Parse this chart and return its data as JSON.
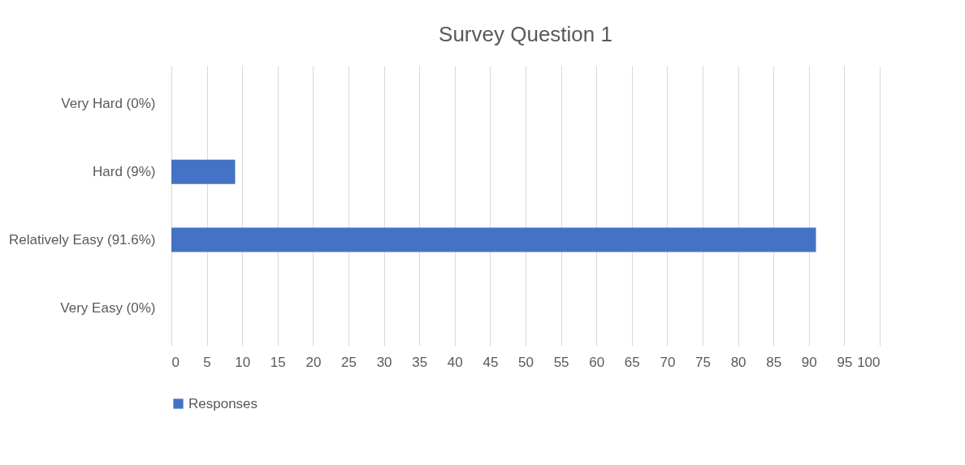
{
  "chart_data": {
    "type": "bar",
    "orientation": "horizontal",
    "title": "Survey Question 1",
    "categories": [
      "Very Hard (0%)",
      "Hard (9%)",
      "Relatively Easy (91.6%)",
      "Very Easy (0%)"
    ],
    "series": [
      {
        "name": "Responses",
        "color": "#4472c4",
        "values": [
          0,
          9,
          91,
          0
        ]
      }
    ],
    "xlim": [
      0,
      100
    ],
    "xticks": [
      0,
      5,
      10,
      15,
      20,
      25,
      30,
      35,
      40,
      45,
      50,
      55,
      60,
      65,
      70,
      75,
      80,
      85,
      90,
      95,
      100
    ],
    "grid": "x",
    "legend": "bottom"
  }
}
